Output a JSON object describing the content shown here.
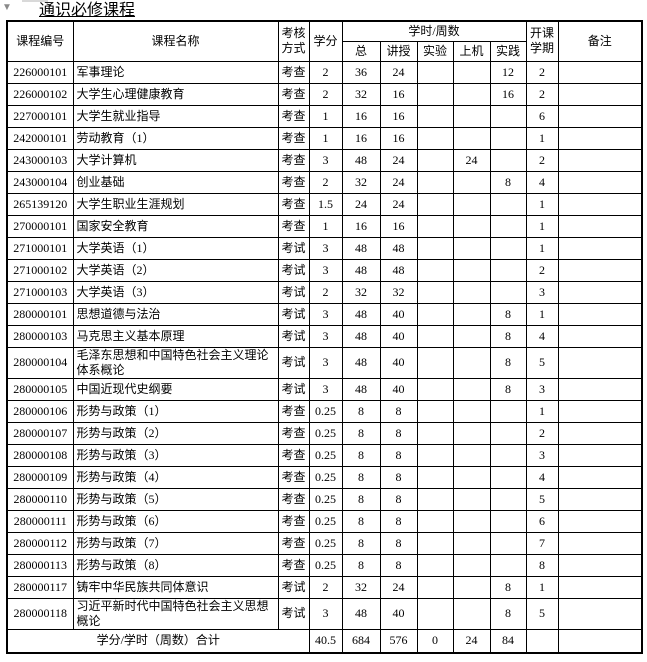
{
  "corner_marker_glyph": "▼",
  "title": "通识必修课程",
  "colors": {
    "border": "#000000",
    "text": "#000000",
    "marker": "#8a8a8a",
    "background": "#ffffff"
  },
  "table": {
    "headers": {
      "course_id": "课程编号",
      "course_name": "课程名称",
      "assessment": "考核方式",
      "credits": "学分",
      "hours_group": "学时/周数",
      "hours_sub": [
        "总",
        "讲授",
        "实验",
        "上机",
        "实践"
      ],
      "semester": "开课学期",
      "note": "备注"
    },
    "rows": [
      {
        "id": "226000101",
        "name": "军事理论",
        "method": "考查",
        "credits": "2",
        "total": "36",
        "lecture": "24",
        "lab": "",
        "computer": "",
        "practice": "12",
        "semester": "2",
        "note": ""
      },
      {
        "id": "226000102",
        "name": "大学生心理健康教育",
        "method": "考查",
        "credits": "2",
        "total": "32",
        "lecture": "16",
        "lab": "",
        "computer": "",
        "practice": "16",
        "semester": "2",
        "note": ""
      },
      {
        "id": "227000101",
        "name": "大学生就业指导",
        "method": "考查",
        "credits": "1",
        "total": "16",
        "lecture": "16",
        "lab": "",
        "computer": "",
        "practice": "",
        "semester": "6",
        "note": ""
      },
      {
        "id": "242000101",
        "name": "劳动教育（1）",
        "method": "考查",
        "credits": "1",
        "total": "16",
        "lecture": "16",
        "lab": "",
        "computer": "",
        "practice": "",
        "semester": "1",
        "note": ""
      },
      {
        "id": "243000103",
        "name": "大学计算机",
        "method": "考查",
        "credits": "3",
        "total": "48",
        "lecture": "24",
        "lab": "",
        "computer": "24",
        "practice": "",
        "semester": "2",
        "note": ""
      },
      {
        "id": "243000104",
        "name": "创业基础",
        "method": "考查",
        "credits": "2",
        "total": "32",
        "lecture": "24",
        "lab": "",
        "computer": "",
        "practice": "8",
        "semester": "4",
        "note": ""
      },
      {
        "id": "265139120",
        "name": "大学生职业生涯规划",
        "method": "考查",
        "credits": "1.5",
        "total": "24",
        "lecture": "24",
        "lab": "",
        "computer": "",
        "practice": "",
        "semester": "1",
        "note": ""
      },
      {
        "id": "270000101",
        "name": "国家安全教育",
        "method": "考查",
        "credits": "1",
        "total": "16",
        "lecture": "16",
        "lab": "",
        "computer": "",
        "practice": "",
        "semester": "1",
        "note": ""
      },
      {
        "id": "271000101",
        "name": "大学英语（1）",
        "method": "考试",
        "credits": "3",
        "total": "48",
        "lecture": "48",
        "lab": "",
        "computer": "",
        "practice": "",
        "semester": "1",
        "note": ""
      },
      {
        "id": "271000102",
        "name": "大学英语（2）",
        "method": "考试",
        "credits": "3",
        "total": "48",
        "lecture": "48",
        "lab": "",
        "computer": "",
        "practice": "",
        "semester": "2",
        "note": ""
      },
      {
        "id": "271000103",
        "name": "大学英语（3）",
        "method": "考试",
        "credits": "2",
        "total": "32",
        "lecture": "32",
        "lab": "",
        "computer": "",
        "practice": "",
        "semester": "3",
        "note": ""
      },
      {
        "id": "280000101",
        "name": "思想道德与法治",
        "method": "考试",
        "credits": "3",
        "total": "48",
        "lecture": "40",
        "lab": "",
        "computer": "",
        "practice": "8",
        "semester": "1",
        "note": ""
      },
      {
        "id": "280000103",
        "name": "马克思主义基本原理",
        "method": "考试",
        "credits": "3",
        "total": "48",
        "lecture": "40",
        "lab": "",
        "computer": "",
        "practice": "8",
        "semester": "4",
        "note": ""
      },
      {
        "id": "280000104",
        "name": "毛泽东思想和中国特色社会主义理论体系概论",
        "method": "考试",
        "credits": "3",
        "total": "48",
        "lecture": "40",
        "lab": "",
        "computer": "",
        "practice": "8",
        "semester": "5",
        "note": ""
      },
      {
        "id": "280000105",
        "name": "中国近现代史纲要",
        "method": "考试",
        "credits": "3",
        "total": "48",
        "lecture": "40",
        "lab": "",
        "computer": "",
        "practice": "8",
        "semester": "3",
        "note": ""
      },
      {
        "id": "280000106",
        "name": "形势与政策（1）",
        "method": "考查",
        "credits": "0.25",
        "total": "8",
        "lecture": "8",
        "lab": "",
        "computer": "",
        "practice": "",
        "semester": "1",
        "note": ""
      },
      {
        "id": "280000107",
        "name": "形势与政策（2）",
        "method": "考查",
        "credits": "0.25",
        "total": "8",
        "lecture": "8",
        "lab": "",
        "computer": "",
        "practice": "",
        "semester": "2",
        "note": ""
      },
      {
        "id": "280000108",
        "name": "形势与政策（3）",
        "method": "考查",
        "credits": "0.25",
        "total": "8",
        "lecture": "8",
        "lab": "",
        "computer": "",
        "practice": "",
        "semester": "3",
        "note": ""
      },
      {
        "id": "280000109",
        "name": "形势与政策（4）",
        "method": "考查",
        "credits": "0.25",
        "total": "8",
        "lecture": "8",
        "lab": "",
        "computer": "",
        "practice": "",
        "semester": "4",
        "note": ""
      },
      {
        "id": "280000110",
        "name": "形势与政策（5）",
        "method": "考查",
        "credits": "0.25",
        "total": "8",
        "lecture": "8",
        "lab": "",
        "computer": "",
        "practice": "",
        "semester": "5",
        "note": ""
      },
      {
        "id": "280000111",
        "name": "形势与政策（6）",
        "method": "考查",
        "credits": "0.25",
        "total": "8",
        "lecture": "8",
        "lab": "",
        "computer": "",
        "practice": "",
        "semester": "6",
        "note": ""
      },
      {
        "id": "280000112",
        "name": "形势与政策（7）",
        "method": "考查",
        "credits": "0.25",
        "total": "8",
        "lecture": "8",
        "lab": "",
        "computer": "",
        "practice": "",
        "semester": "7",
        "note": ""
      },
      {
        "id": "280000113",
        "name": "形势与政策（8）",
        "method": "考查",
        "credits": "0.25",
        "total": "8",
        "lecture": "8",
        "lab": "",
        "computer": "",
        "practice": "",
        "semester": "8",
        "note": ""
      },
      {
        "id": "280000117",
        "name": "铸牢中华民族共同体意识",
        "method": "考试",
        "credits": "2",
        "total": "32",
        "lecture": "24",
        "lab": "",
        "computer": "",
        "practice": "8",
        "semester": "1",
        "note": ""
      },
      {
        "id": "280000118",
        "name": "习近平新时代中国特色社会主义思想概论",
        "method": "考试",
        "credits": "3",
        "total": "48",
        "lecture": "40",
        "lab": "",
        "computer": "",
        "practice": "8",
        "semester": "5",
        "note": ""
      }
    ],
    "total_row": {
      "label": "学分/学时（周数）合计",
      "credits": "40.5",
      "total": "684",
      "lecture": "576",
      "lab": "0",
      "computer": "24",
      "practice": "84",
      "semester": "",
      "note": ""
    }
  }
}
